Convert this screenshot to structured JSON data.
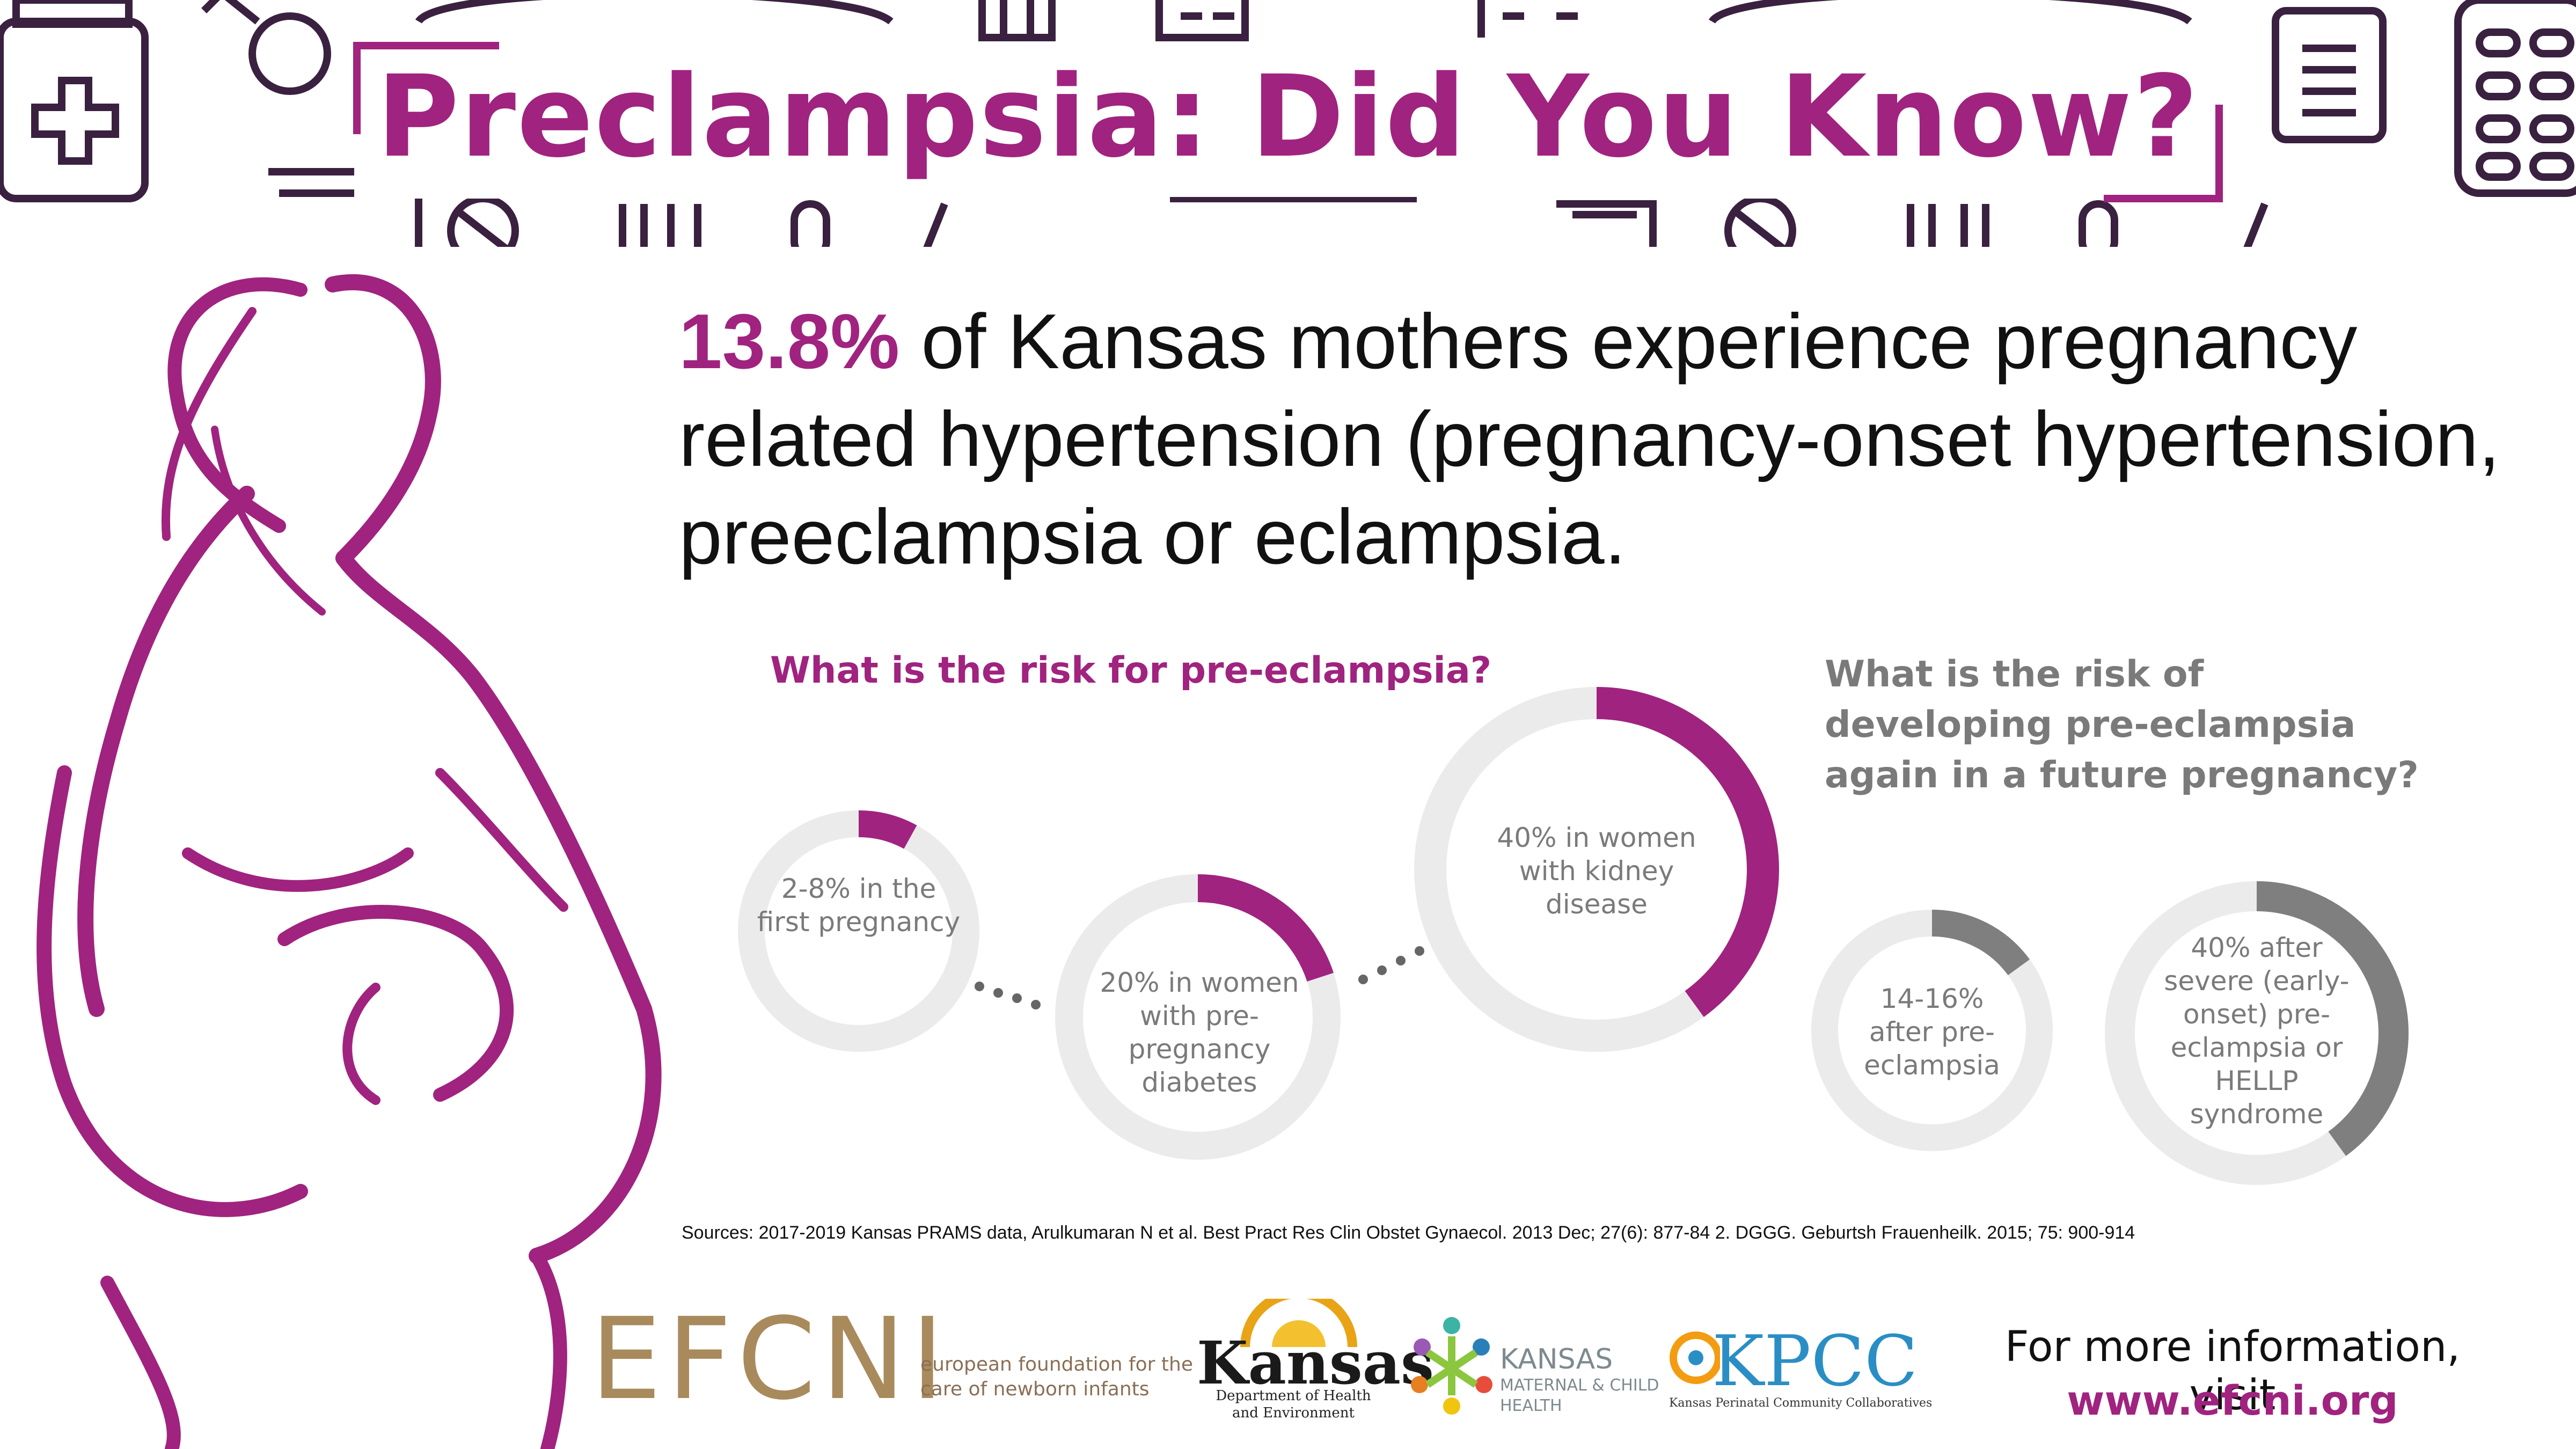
{
  "header": {
    "title": "Preclampsia: Did You Know?"
  },
  "headline": {
    "percent": "13.8%",
    "text": " of Kansas mothers experience pregnancy related hypertension (pregnancy-onset hypertension, preeclampsia or eclampsia."
  },
  "risk_section": {
    "question": "What is the risk for pre-eclampsia?",
    "rings": [
      {
        "label": "2-8% in the first pregnancy",
        "fill": 0.08
      },
      {
        "label": "20% in women with pre-pregnancy diabetes",
        "fill": 0.2
      },
      {
        "label": "40% in women with kidney disease",
        "fill": 0.4
      }
    ]
  },
  "recurrence_section": {
    "question": "What  is the risk of developing pre-eclampsia again in a future pregnancy?",
    "rings": [
      {
        "label": "14-16% after pre-eclampsia",
        "fill": 0.15
      },
      {
        "label": "40% after severe (early-onset) pre-eclampsia or HELLP syndrome",
        "fill": 0.4
      }
    ]
  },
  "sources": "Sources: 2017-2019 Kansas PRAMS data, Arulkumaran N et al. Best Pract Res Clin Obstet Gynaecol. 2013 Dec; 27(6): 877-84 2. DGGG. Geburtsh Frauenheilk. 2015; 75: 900-914",
  "logos": {
    "efcni": {
      "word": "EFCNI",
      "tagline": "european foundation for the care of newborn infants"
    },
    "kansas": {
      "word": "Kansas",
      "sub": "Department of Health and Environment"
    },
    "kmch": {
      "word": "KANSAS",
      "sub": "MATERNAL & CHILD HEALTH"
    },
    "kpcc": {
      "word": "KPCC",
      "sub": "Kansas Perinatal Community Collaboratives"
    }
  },
  "more_info": {
    "text": "For more information, visit",
    "url": "www.efcni.org"
  },
  "colors": {
    "brand_purple": "#a0237f",
    "ring_gray": "#ebebeb",
    "ring_dark_gray": "#7f7f7f",
    "icon_dark": "#3a2140",
    "text_gray": "#7a7a7a"
  },
  "icons": [
    "medicine-bottle-icon",
    "gender-symbol-icon",
    "pill-box-icon",
    "clipboard-icon",
    "baby-cradle-icon",
    "pregnant-woman-illustration"
  ]
}
